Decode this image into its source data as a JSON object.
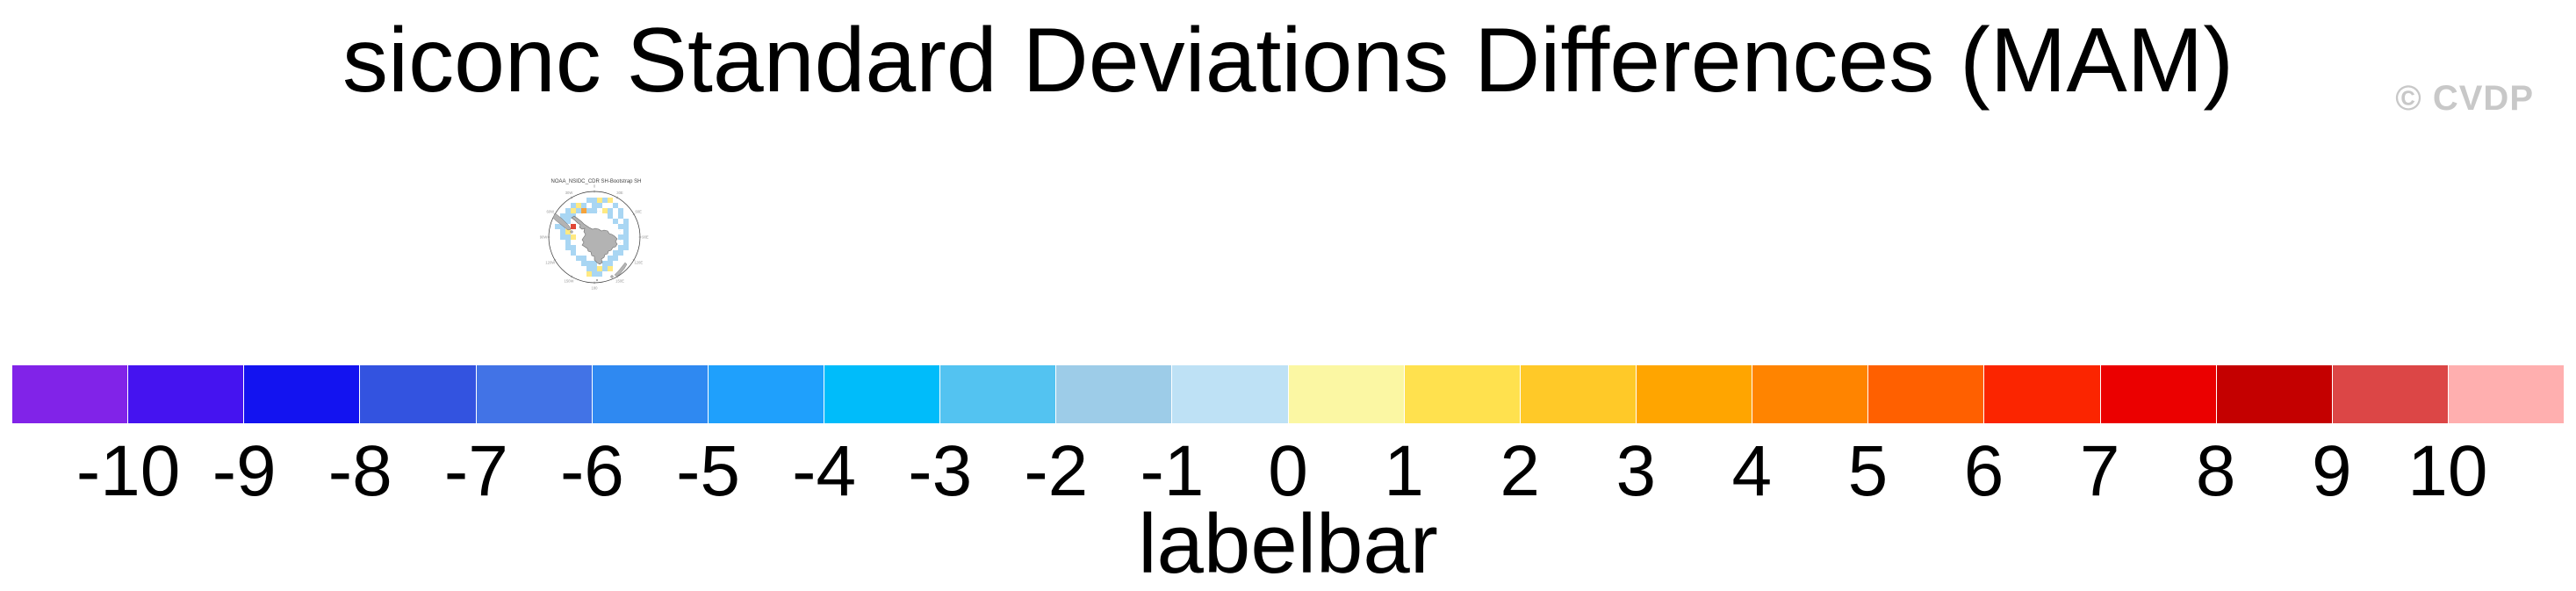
{
  "header": {
    "title": "siconc Standard Deviations Differences (MAM)",
    "credit": "© CVDP"
  },
  "map": {
    "title": "NOAA_NSIDC_CDR SH-Bootstrap SH",
    "ring_labels": [
      "0",
      "30E",
      "60E",
      "90E",
      "120E",
      "150E",
      "180",
      "150W",
      "120W",
      "90W",
      "60W",
      "30W"
    ],
    "land_color": "#b3b3b3",
    "land_outline": "#6e6e6e",
    "circle_outline": "#333333",
    "cell_colors": {
      "blue": "#a9d6f3",
      "yellow": "#ffe982",
      "orange": "#f5a33c",
      "red": "#e04838"
    },
    "cells": {
      "blue": [
        [
          -1,
          -7
        ],
        [
          0,
          -7
        ],
        [
          2,
          -7
        ],
        [
          -4,
          -6
        ],
        [
          -2,
          -6
        ],
        [
          0,
          -6
        ],
        [
          1,
          -6
        ],
        [
          4,
          -6
        ],
        [
          -5,
          -5
        ],
        [
          -3,
          -5
        ],
        [
          -1,
          -5
        ],
        [
          0,
          -5
        ],
        [
          3,
          -5
        ],
        [
          5,
          -5
        ],
        [
          -6,
          -4
        ],
        [
          -5,
          -4
        ],
        [
          -4,
          -4
        ],
        [
          3,
          -4
        ],
        [
          5,
          -4
        ],
        [
          -6,
          -3
        ],
        [
          -5,
          -3
        ],
        [
          4,
          -3
        ],
        [
          6,
          -3
        ],
        [
          -7,
          -2
        ],
        [
          -6,
          -2
        ],
        [
          5,
          -2
        ],
        [
          6,
          -2
        ],
        [
          -6,
          -1
        ],
        [
          6,
          -1
        ],
        [
          -6,
          0
        ],
        [
          -5,
          0
        ],
        [
          5,
          0
        ],
        [
          6,
          0
        ],
        [
          -5,
          1
        ],
        [
          6,
          1
        ],
        [
          -5,
          2
        ],
        [
          -4,
          2
        ],
        [
          5,
          2
        ],
        [
          6,
          2
        ],
        [
          -4,
          3
        ],
        [
          4,
          3
        ],
        [
          5,
          3
        ],
        [
          -3,
          4
        ],
        [
          -2,
          4
        ],
        [
          3,
          4
        ],
        [
          4,
          4
        ],
        [
          -2,
          5
        ],
        [
          -1,
          5
        ],
        [
          0,
          5
        ],
        [
          2,
          5
        ],
        [
          3,
          5
        ],
        [
          -1,
          6
        ],
        [
          0,
          6
        ],
        [
          2,
          6
        ],
        [
          0,
          7
        ],
        [
          1,
          7
        ]
      ],
      "yellow": [
        [
          -3,
          -6
        ],
        [
          1,
          -7
        ],
        [
          3,
          -7
        ],
        [
          -4,
          -5
        ],
        [
          2,
          -5
        ],
        [
          -5,
          -1
        ],
        [
          -4,
          0
        ],
        [
          1,
          6
        ],
        [
          -1,
          7
        ],
        [
          3,
          6
        ]
      ],
      "orange": [
        [
          -2,
          -5
        ]
      ],
      "red": [
        [
          -4,
          -2
        ]
      ]
    }
  },
  "colorbar": {
    "colors": [
      "#8123e8",
      "#4513f0",
      "#1313f0",
      "#3353e0",
      "#4273e6",
      "#2f89f1",
      "#1fa0fc",
      "#00bcfa",
      "#53c3f1",
      "#9dcce8",
      "#bee1f5",
      "#fbf7a3",
      "#ffe14e",
      "#ffc928",
      "#ffa500",
      "#ff8400",
      "#ff6000",
      "#fb2500",
      "#eb0000",
      "#c40000",
      "#dc4646",
      "#ffafaf"
    ],
    "ticks": [
      "-10",
      "-9",
      "-8",
      "-7",
      "-6",
      "-5",
      "-4",
      "-3",
      "-2",
      "-1",
      "0",
      "1",
      "2",
      "3",
      "4",
      "5",
      "6",
      "7",
      "8",
      "9",
      "10"
    ],
    "caption": "labelbar"
  },
  "chart_data": {
    "type": "heatmap",
    "title": "siconc Standard Deviations Differences (MAM)",
    "panel_title": "NOAA_NSIDC_CDR SH-Bootstrap SH",
    "projection": "south polar stereographic",
    "legend_position": "bottom",
    "colorbar_levels": [
      -10,
      -9,
      -8,
      -7,
      -6,
      -5,
      -4,
      -3,
      -2,
      -1,
      0,
      1,
      2,
      3,
      4,
      5,
      6,
      7,
      8,
      9,
      10
    ],
    "colorbar_colors": [
      "#8123e8",
      "#4513f0",
      "#1313f0",
      "#3353e0",
      "#4273e6",
      "#2f89f1",
      "#1fa0fc",
      "#00bcfa",
      "#53c3f1",
      "#9dcce8",
      "#bee1f5",
      "#fbf7a3",
      "#ffe14e",
      "#ffc928",
      "#ffa500",
      "#ff8400",
      "#ff6000",
      "#fb2500",
      "#eb0000",
      "#c40000",
      "#dc4646",
      "#ffafaf"
    ],
    "caption": "labelbar",
    "credit": "© CVDP"
  }
}
